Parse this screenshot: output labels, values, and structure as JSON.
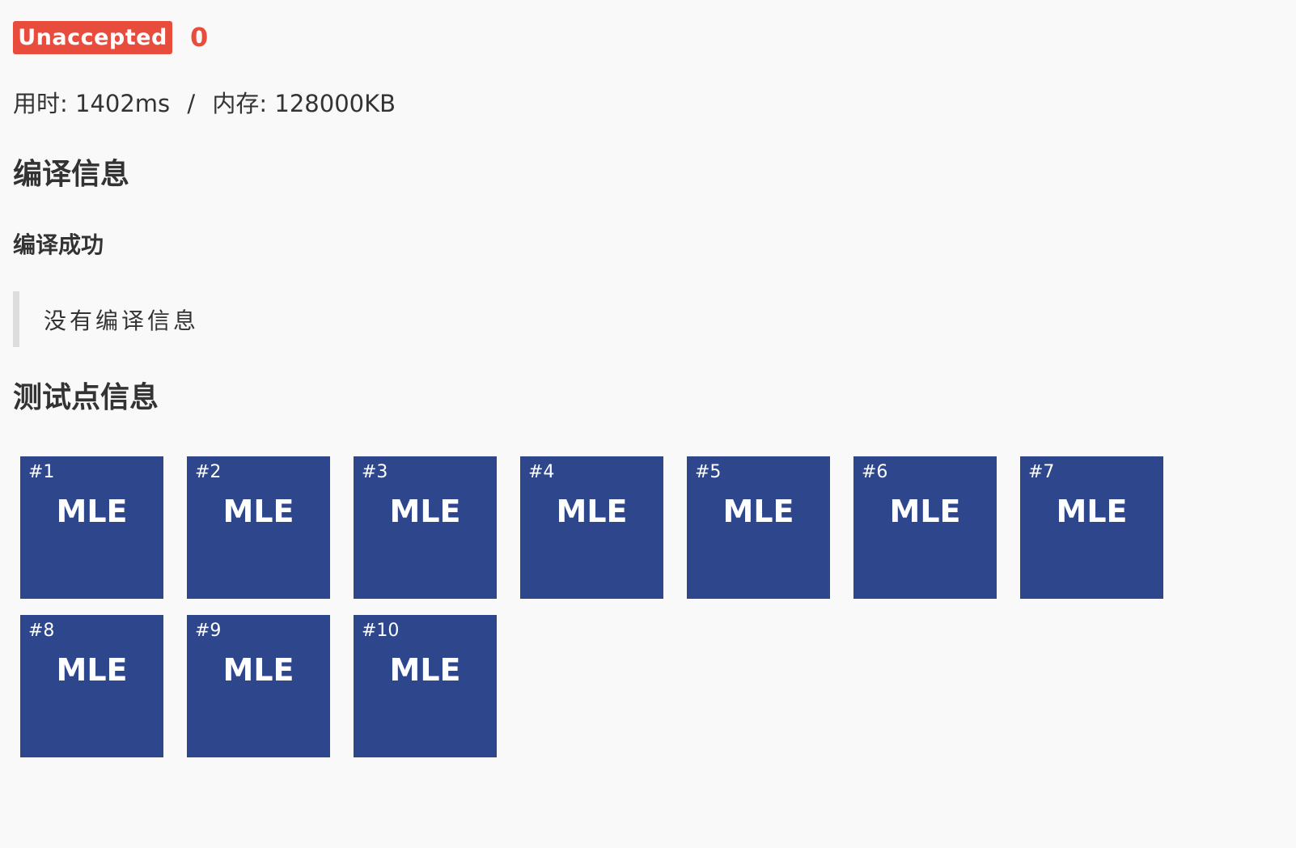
{
  "status": {
    "label": "Unaccepted",
    "score": "0",
    "color": "#e74c3c"
  },
  "usage": {
    "time_label": "用时:",
    "time_value": "1402ms",
    "separator": "/",
    "memory_label": "内存:",
    "memory_value": "128000KB"
  },
  "compile": {
    "title": "编译信息",
    "status": "编译成功",
    "message": "没有编译信息"
  },
  "tests": {
    "title": "测试点信息",
    "tile_color": "#2e478c",
    "cases": [
      {
        "id": "#1",
        "result": "MLE"
      },
      {
        "id": "#2",
        "result": "MLE"
      },
      {
        "id": "#3",
        "result": "MLE"
      },
      {
        "id": "#4",
        "result": "MLE"
      },
      {
        "id": "#5",
        "result": "MLE"
      },
      {
        "id": "#6",
        "result": "MLE"
      },
      {
        "id": "#7",
        "result": "MLE"
      },
      {
        "id": "#8",
        "result": "MLE"
      },
      {
        "id": "#9",
        "result": "MLE"
      },
      {
        "id": "#10",
        "result": "MLE"
      }
    ]
  }
}
